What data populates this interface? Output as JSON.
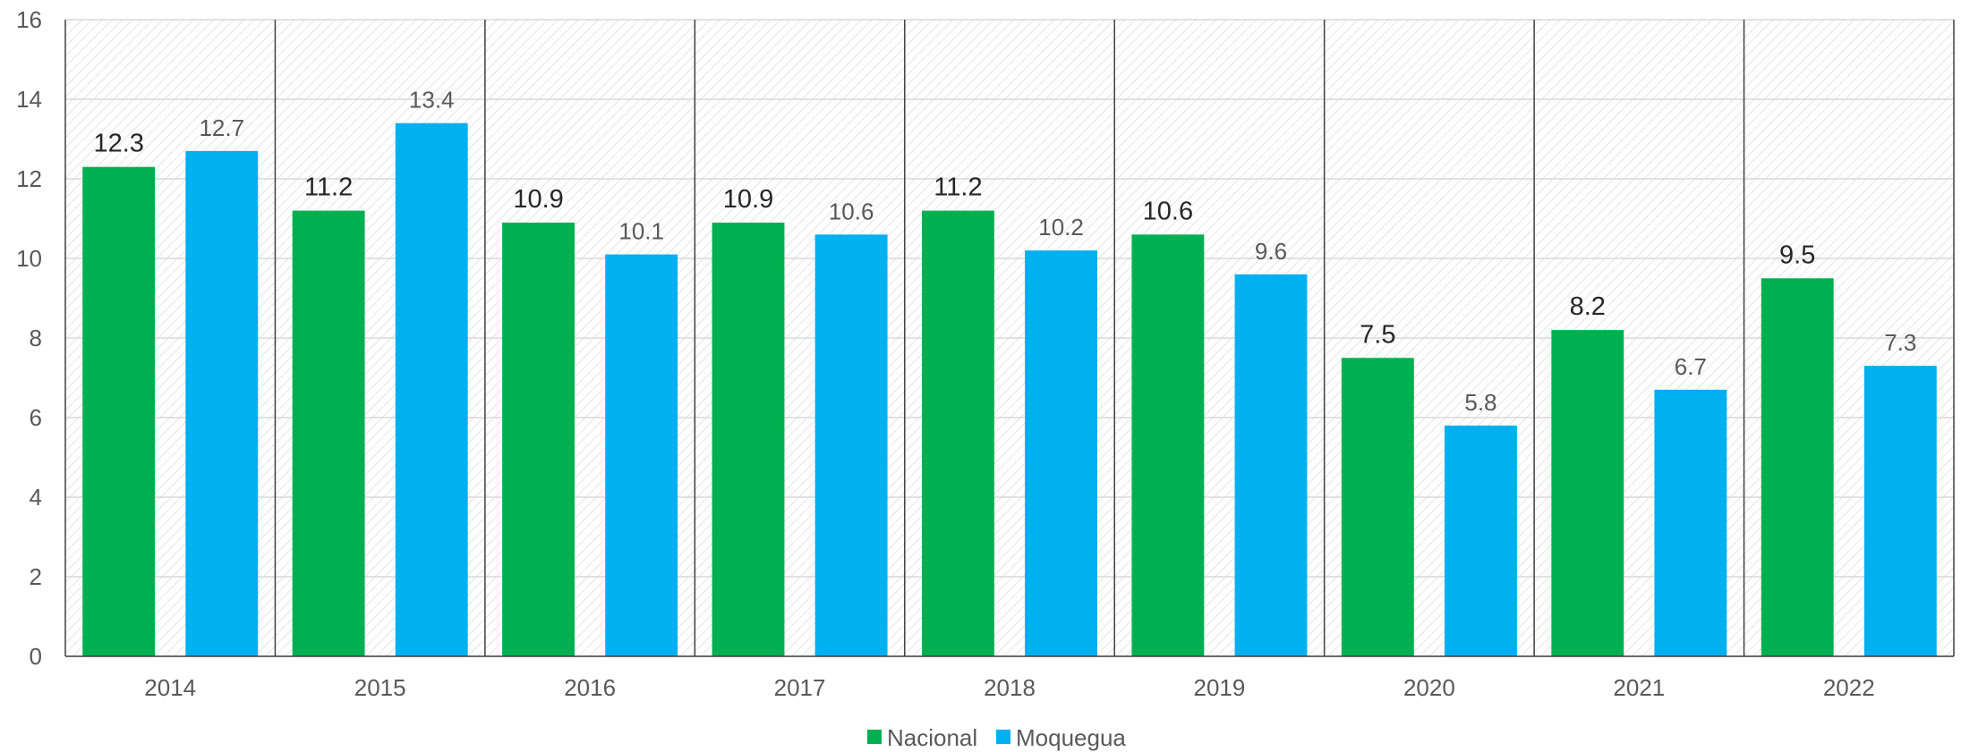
{
  "chart_data": {
    "type": "bar",
    "categories": [
      "2014",
      "2015",
      "2016",
      "2017",
      "2018",
      "2019",
      "2020",
      "2021",
      "2022"
    ],
    "series": [
      {
        "name": "Nacional",
        "color": "#00b050",
        "values": [
          12.3,
          11.2,
          10.9,
          10.9,
          11.2,
          10.6,
          7.5,
          8.2,
          9.5
        ]
      },
      {
        "name": "Moquegua",
        "color": "#00b0f0",
        "values": [
          12.7,
          13.4,
          10.1,
          10.6,
          10.2,
          9.6,
          5.8,
          6.7,
          7.3
        ]
      }
    ],
    "y_ticks": [
      "0",
      "2",
      "4",
      "6",
      "8",
      "10",
      "12",
      "14",
      "16"
    ],
    "ylim": [
      0,
      16
    ],
    "grid": true,
    "legend_position": "bottom",
    "title": "",
    "xlabel": "",
    "ylabel": ""
  }
}
